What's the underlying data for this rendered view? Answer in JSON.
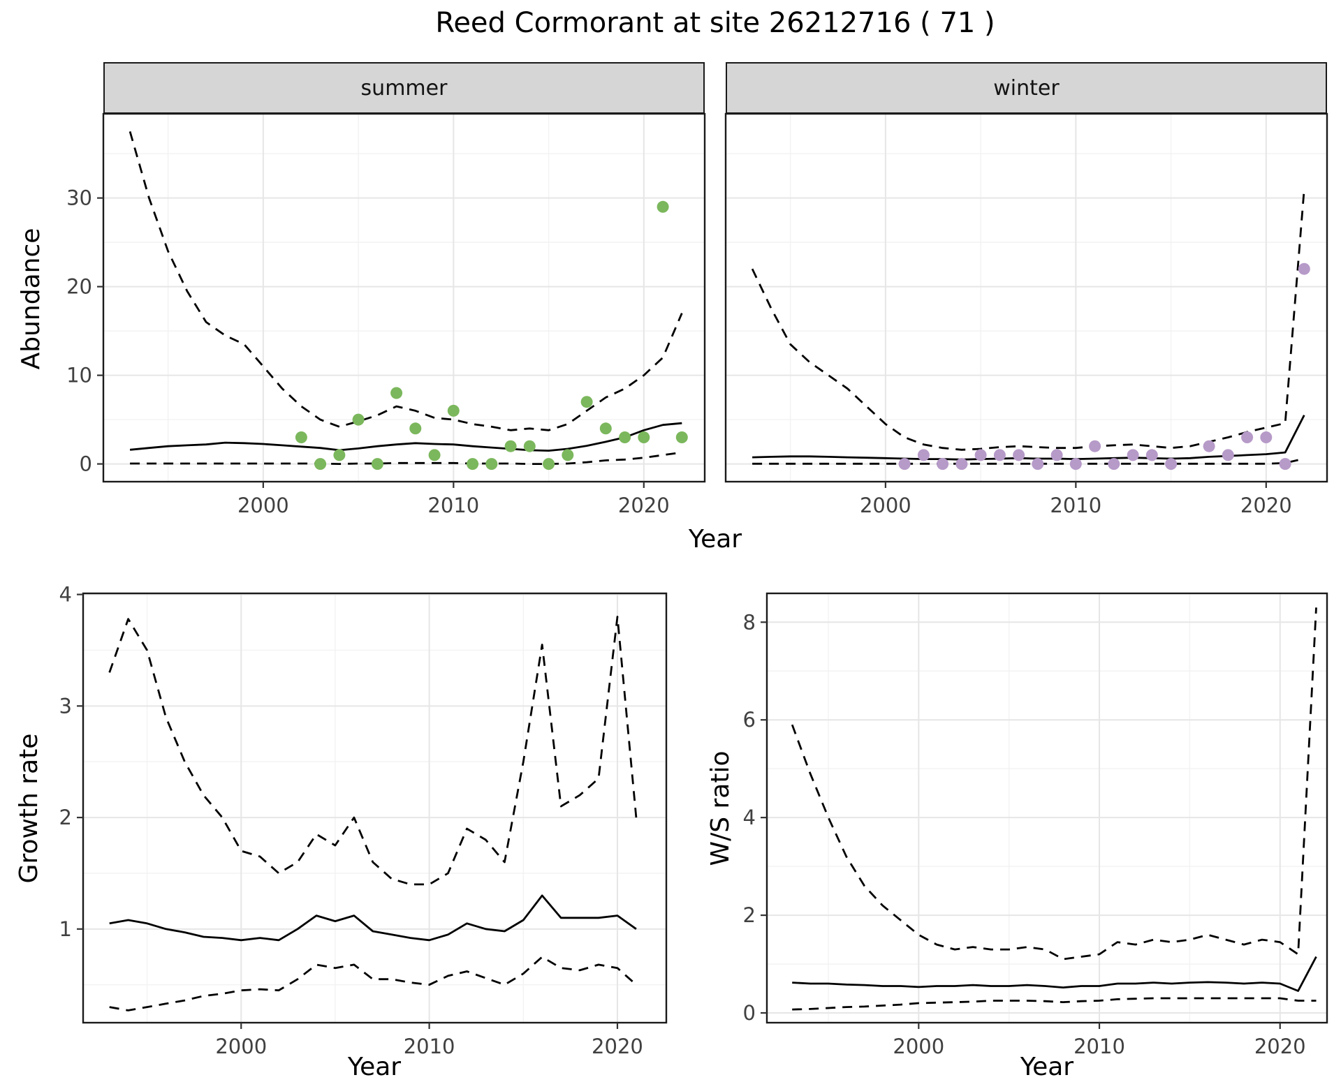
{
  "title": "Reed Cormorant at site 26212716 ( 71 )",
  "colors": {
    "summer_points": "#7bb75c",
    "winter_points": "#b69ac8",
    "line": "#000000",
    "strip_background": "#d6d6d6",
    "panel_border": "#1a1a1a",
    "grid_major": "#e6e6e6",
    "grid_minor": "#f2f2f2",
    "tick_text": "#404040"
  },
  "chart_data": [
    {
      "id": "abundance-summer",
      "type": "line",
      "facet_label": "summer",
      "xlabel": "Year",
      "ylabel": "Abundance",
      "xlim": [
        1991.6,
        2023.2
      ],
      "ylim": [
        -2.0,
        39.5
      ],
      "xticks": [
        2000,
        2010,
        2020
      ],
      "xticks_minor": [
        1995,
        2005,
        2015
      ],
      "yticks": [
        0,
        10,
        20,
        30
      ],
      "yticks_minor": [
        5,
        15,
        25,
        35
      ],
      "grid": true,
      "legend": "none",
      "series": [
        {
          "key": "upper-ci",
          "name": "upper 95% credible interval",
          "style": "dashed",
          "color": "#000000",
          "x": [
            1993,
            1994,
            1995,
            1996,
            1997,
            1998,
            1999,
            2000,
            2001,
            2002,
            2003,
            2004,
            2005,
            2006,
            2007,
            2008,
            2009,
            2010,
            2011,
            2012,
            2013,
            2014,
            2015,
            2016,
            2017,
            2018,
            2019,
            2020,
            2021,
            2022
          ],
          "y": [
            37.5,
            30.0,
            24.0,
            19.5,
            16.0,
            14.5,
            13.5,
            11.0,
            8.5,
            6.5,
            5.0,
            4.2,
            4.8,
            5.5,
            6.5,
            6.0,
            5.2,
            5.0,
            4.5,
            4.2,
            3.8,
            4.0,
            3.8,
            4.5,
            6.0,
            7.5,
            8.5,
            10.0,
            12.0,
            17.0
          ]
        },
        {
          "key": "mean",
          "name": "modelled mean abundance",
          "style": "solid",
          "color": "#000000",
          "x": [
            1993,
            1994,
            1995,
            1996,
            1997,
            1998,
            1999,
            2000,
            2001,
            2002,
            2003,
            2004,
            2005,
            2006,
            2007,
            2008,
            2009,
            2010,
            2011,
            2012,
            2013,
            2014,
            2015,
            2016,
            2017,
            2018,
            2019,
            2020,
            2021,
            2022
          ],
          "y": [
            1.6,
            1.8,
            2.0,
            2.1,
            2.2,
            2.4,
            2.35,
            2.25,
            2.1,
            1.95,
            1.8,
            1.55,
            1.75,
            2.0,
            2.2,
            2.35,
            2.25,
            2.2,
            2.0,
            1.85,
            1.7,
            1.55,
            1.5,
            1.7,
            2.05,
            2.5,
            3.0,
            3.8,
            4.4,
            4.6
          ]
        },
        {
          "key": "lower-ci",
          "name": "lower 95% credible interval",
          "style": "dashed",
          "color": "#000000",
          "x": [
            1993,
            1994,
            1995,
            1996,
            1997,
            1998,
            1999,
            2000,
            2001,
            2002,
            2003,
            2004,
            2005,
            2006,
            2007,
            2008,
            2009,
            2010,
            2011,
            2012,
            2013,
            2014,
            2015,
            2016,
            2017,
            2018,
            2019,
            2020,
            2021,
            2022
          ],
          "y": [
            0.05,
            0.05,
            0.05,
            0.05,
            0.05,
            0.05,
            0.05,
            0.05,
            0.05,
            0.05,
            0.05,
            0.0,
            0.05,
            0.05,
            0.1,
            0.1,
            0.1,
            0.1,
            0.05,
            0.05,
            0.05,
            0.0,
            0.0,
            0.05,
            0.2,
            0.4,
            0.5,
            0.7,
            1.0,
            1.3
          ]
        }
      ],
      "points": [
        {
          "name": "observed summer counts",
          "color": "#7bb75c",
          "x": [
            2002,
            2003,
            2004,
            2005,
            2006,
            2007,
            2008,
            2009,
            2010,
            2011,
            2012,
            2013,
            2014,
            2015,
            2016,
            2017,
            2018,
            2019,
            2020,
            2021,
            2022
          ],
          "y": [
            3,
            0,
            1,
            5,
            0,
            8,
            4,
            1,
            6,
            0,
            0,
            2,
            2,
            0,
            1,
            7,
            4,
            3,
            3,
            29,
            3
          ]
        }
      ]
    },
    {
      "id": "abundance-winter",
      "type": "line",
      "facet_label": "winter",
      "xlabel": "Year",
      "ylabel": "Abundance",
      "xlim": [
        1991.6,
        2023.2
      ],
      "ylim": [
        -2.0,
        39.5
      ],
      "xticks": [
        2000,
        2010,
        2020
      ],
      "xticks_minor": [
        1995,
        2005,
        2015
      ],
      "yticks": [
        0,
        10,
        20,
        30
      ],
      "yticks_minor": [
        5,
        15,
        25,
        35
      ],
      "grid": true,
      "legend": "none",
      "series": [
        {
          "key": "upper-ci",
          "name": "upper 95% credible interval",
          "style": "dashed",
          "color": "#000000",
          "x": [
            1993,
            1994,
            1995,
            1996,
            1997,
            1998,
            1999,
            2000,
            2001,
            2002,
            2003,
            2004,
            2005,
            2006,
            2007,
            2008,
            2009,
            2010,
            2011,
            2012,
            2013,
            2014,
            2015,
            2016,
            2017,
            2018,
            2019,
            2020,
            2021,
            2022
          ],
          "y": [
            22.0,
            17.5,
            13.5,
            11.5,
            10.0,
            8.5,
            6.5,
            4.5,
            3.0,
            2.2,
            1.8,
            1.6,
            1.7,
            1.9,
            2.0,
            1.9,
            1.8,
            1.8,
            2.0,
            2.1,
            2.2,
            2.0,
            1.8,
            2.0,
            2.5,
            3.0,
            3.6,
            4.1,
            4.6,
            31.0
          ]
        },
        {
          "key": "mean",
          "name": "modelled mean abundance",
          "style": "solid",
          "color": "#000000",
          "x": [
            1993,
            1994,
            1995,
            1996,
            1997,
            1998,
            1999,
            2000,
            2001,
            2002,
            2003,
            2004,
            2005,
            2006,
            2007,
            2008,
            2009,
            2010,
            2011,
            2012,
            2013,
            2014,
            2015,
            2016,
            2017,
            2018,
            2019,
            2020,
            2021,
            2022
          ],
          "y": [
            0.75,
            0.8,
            0.85,
            0.85,
            0.8,
            0.75,
            0.7,
            0.65,
            0.6,
            0.55,
            0.55,
            0.5,
            0.55,
            0.6,
            0.65,
            0.6,
            0.6,
            0.55,
            0.6,
            0.65,
            0.7,
            0.65,
            0.6,
            0.65,
            0.8,
            0.9,
            1.0,
            1.1,
            1.3,
            5.5
          ]
        },
        {
          "key": "lower-ci",
          "name": "lower 95% credible interval",
          "style": "dashed",
          "color": "#000000",
          "x": [
            1993,
            1994,
            1995,
            1996,
            1997,
            1998,
            1999,
            2000,
            2001,
            2002,
            2003,
            2004,
            2005,
            2006,
            2007,
            2008,
            2009,
            2010,
            2011,
            2012,
            2013,
            2014,
            2015,
            2016,
            2017,
            2018,
            2019,
            2020,
            2021,
            2022
          ],
          "y": [
            0.02,
            0.02,
            0.02,
            0.02,
            0.02,
            0.02,
            0.02,
            0.02,
            0.02,
            0.02,
            0.02,
            0.02,
            0.02,
            0.02,
            0.02,
            0.02,
            0.02,
            0.02,
            0.02,
            0.02,
            0.02,
            0.02,
            0.02,
            0.02,
            0.02,
            0.02,
            0.02,
            0.02,
            0.1,
            0.6
          ]
        }
      ],
      "points": [
        {
          "name": "observed winter counts",
          "color": "#b69ac8",
          "x": [
            2001,
            2002,
            2003,
            2004,
            2005,
            2006,
            2007,
            2008,
            2009,
            2010,
            2011,
            2012,
            2013,
            2014,
            2015,
            2017,
            2018,
            2019,
            2020,
            2021,
            2022
          ],
          "y": [
            0,
            1,
            0,
            0,
            1,
            1,
            1,
            0,
            1,
            0,
            2,
            0,
            1,
            1,
            0,
            2,
            1,
            3,
            3,
            0,
            22
          ]
        }
      ]
    },
    {
      "id": "growth-rate",
      "type": "line",
      "xlabel": "Year",
      "ylabel": "Growth rate",
      "xlim": [
        1991.6,
        2022.6
      ],
      "ylim": [
        0.16,
        4.01
      ],
      "xticks": [
        2000,
        2010,
        2020
      ],
      "xticks_minor": [
        1995,
        2005,
        2015
      ],
      "yticks": [
        1,
        2,
        3,
        4
      ],
      "yticks_minor": [
        0.5,
        1.5,
        2.5,
        3.5
      ],
      "grid": true,
      "legend": "none",
      "series": [
        {
          "key": "upper-ci",
          "name": "upper 95% credible interval",
          "style": "dashed",
          "color": "#000000",
          "x": [
            1993,
            1994,
            1995,
            1996,
            1997,
            1998,
            1999,
            2000,
            2001,
            2002,
            2003,
            2004,
            2005,
            2006,
            2007,
            2008,
            2009,
            2010,
            2011,
            2012,
            2013,
            2014,
            2015,
            2016,
            2017,
            2018,
            2019,
            2020,
            2021
          ],
          "y": [
            3.3,
            3.78,
            3.5,
            2.9,
            2.5,
            2.2,
            2.0,
            1.7,
            1.65,
            1.5,
            1.6,
            1.85,
            1.75,
            2.0,
            1.6,
            1.45,
            1.4,
            1.4,
            1.5,
            1.9,
            1.8,
            1.6,
            2.5,
            3.55,
            2.1,
            2.2,
            2.35,
            3.8,
            2.0
          ]
        },
        {
          "key": "mean",
          "name": "mean growth rate",
          "style": "solid",
          "color": "#000000",
          "x": [
            1993,
            1994,
            1995,
            1996,
            1997,
            1998,
            1999,
            2000,
            2001,
            2002,
            2003,
            2004,
            2005,
            2006,
            2007,
            2008,
            2009,
            2010,
            2011,
            2012,
            2013,
            2014,
            2015,
            2016,
            2017,
            2018,
            2019,
            2020,
            2021
          ],
          "y": [
            1.05,
            1.08,
            1.05,
            1.0,
            0.97,
            0.93,
            0.92,
            0.9,
            0.92,
            0.9,
            1.0,
            1.12,
            1.07,
            1.12,
            0.98,
            0.95,
            0.92,
            0.9,
            0.95,
            1.05,
            1.0,
            0.98,
            1.08,
            1.3,
            1.1,
            1.1,
            1.1,
            1.12,
            1.0
          ]
        },
        {
          "key": "lower-ci",
          "name": "lower 95% credible interval",
          "style": "dashed",
          "color": "#000000",
          "x": [
            1993,
            1994,
            1995,
            1996,
            1997,
            1998,
            1999,
            2000,
            2001,
            2002,
            2003,
            2004,
            2005,
            2006,
            2007,
            2008,
            2009,
            2010,
            2011,
            2012,
            2013,
            2014,
            2015,
            2016,
            2017,
            2018,
            2019,
            2020,
            2021
          ],
          "y": [
            0.3,
            0.27,
            0.3,
            0.33,
            0.36,
            0.4,
            0.42,
            0.45,
            0.46,
            0.45,
            0.55,
            0.68,
            0.65,
            0.68,
            0.55,
            0.55,
            0.52,
            0.5,
            0.58,
            0.62,
            0.56,
            0.5,
            0.6,
            0.75,
            0.65,
            0.63,
            0.68,
            0.65,
            0.5
          ]
        }
      ],
      "points": []
    },
    {
      "id": "ws-ratio",
      "type": "line",
      "xlabel": "Year",
      "ylabel": "W/S ratio",
      "xlim": [
        1991.6,
        2022.6
      ],
      "ylim": [
        -0.2,
        8.59
      ],
      "xticks": [
        2000,
        2010,
        2020
      ],
      "xticks_minor": [
        1995,
        2005,
        2015
      ],
      "yticks": [
        0,
        2,
        4,
        6,
        8
      ],
      "yticks_minor": [
        1,
        3,
        5,
        7
      ],
      "grid": true,
      "legend": "none",
      "series": [
        {
          "key": "upper-ci",
          "name": "upper 95% credible interval",
          "style": "dashed",
          "color": "#000000",
          "x": [
            1993,
            1994,
            1995,
            1996,
            1997,
            1998,
            1999,
            2000,
            2001,
            2002,
            2003,
            2004,
            2005,
            2006,
            2007,
            2008,
            2009,
            2010,
            2011,
            2012,
            2013,
            2014,
            2015,
            2016,
            2017,
            2018,
            2019,
            2020,
            2021,
            2022
          ],
          "y": [
            5.9,
            4.9,
            4.0,
            3.2,
            2.6,
            2.2,
            1.9,
            1.6,
            1.4,
            1.3,
            1.35,
            1.3,
            1.3,
            1.35,
            1.3,
            1.1,
            1.15,
            1.2,
            1.45,
            1.4,
            1.5,
            1.45,
            1.5,
            1.6,
            1.5,
            1.4,
            1.5,
            1.45,
            1.2,
            8.3
          ]
        },
        {
          "key": "mean",
          "name": "mean winter/summer ratio",
          "style": "solid",
          "color": "#000000",
          "x": [
            1993,
            1994,
            1995,
            1996,
            1997,
            1998,
            1999,
            2000,
            2001,
            2002,
            2003,
            2004,
            2005,
            2006,
            2007,
            2008,
            2009,
            2010,
            2011,
            2012,
            2013,
            2014,
            2015,
            2016,
            2017,
            2018,
            2019,
            2020,
            2021,
            2022
          ],
          "y": [
            0.62,
            0.6,
            0.6,
            0.58,
            0.57,
            0.55,
            0.55,
            0.53,
            0.55,
            0.55,
            0.57,
            0.55,
            0.55,
            0.57,
            0.55,
            0.52,
            0.55,
            0.55,
            0.6,
            0.6,
            0.62,
            0.6,
            0.62,
            0.63,
            0.62,
            0.6,
            0.62,
            0.6,
            0.45,
            1.15
          ]
        },
        {
          "key": "lower-ci",
          "name": "lower 95% credible interval",
          "style": "dashed",
          "color": "#000000",
          "x": [
            1993,
            1994,
            1995,
            1996,
            1997,
            1998,
            1999,
            2000,
            2001,
            2002,
            2003,
            2004,
            2005,
            2006,
            2007,
            2008,
            2009,
            2010,
            2011,
            2012,
            2013,
            2014,
            2015,
            2016,
            2017,
            2018,
            2019,
            2020,
            2021,
            2022
          ],
          "y": [
            0.07,
            0.08,
            0.1,
            0.12,
            0.13,
            0.15,
            0.17,
            0.2,
            0.21,
            0.22,
            0.23,
            0.25,
            0.25,
            0.25,
            0.24,
            0.22,
            0.24,
            0.25,
            0.28,
            0.29,
            0.3,
            0.3,
            0.3,
            0.3,
            0.3,
            0.3,
            0.3,
            0.3,
            0.25,
            0.25
          ]
        }
      ],
      "points": []
    }
  ]
}
